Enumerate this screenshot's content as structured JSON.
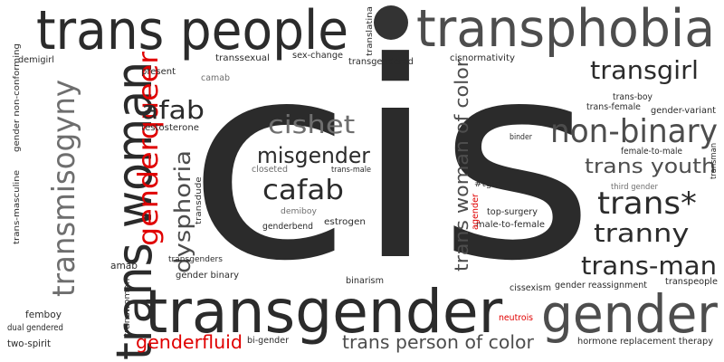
{
  "colors": {
    "dark": "#2b2b2b",
    "mid": "#4d4d4d",
    "gray": "#6e6e6e",
    "light": "#999999",
    "red": "#e00000"
  },
  "words": [
    {
      "text": "cis",
      "color": "dark"
    },
    {
      "text": "trans people",
      "color": "dark"
    },
    {
      "text": "transphobia",
      "color": "mid"
    },
    {
      "text": "transgender",
      "color": "dark"
    },
    {
      "text": "gender",
      "color": "mid"
    },
    {
      "text": "trans woman",
      "color": "dark"
    },
    {
      "text": "transmisogyny",
      "color": "gray"
    },
    {
      "text": "genderqueer",
      "color": "red"
    },
    {
      "text": "non-binary",
      "color": "mid"
    },
    {
      "text": "transgirl",
      "color": "dark"
    },
    {
      "text": "trans woman of color",
      "color": "mid"
    },
    {
      "text": "trans*",
      "color": "dark"
    },
    {
      "text": "tranny",
      "color": "dark"
    },
    {
      "text": "trans-man",
      "color": "dark"
    },
    {
      "text": "trans youth",
      "color": "mid"
    },
    {
      "text": "cishet",
      "color": "gray"
    },
    {
      "text": "misgender",
      "color": "dark"
    },
    {
      "text": "cafab",
      "color": "dark"
    },
    {
      "text": "afab",
      "color": "dark"
    },
    {
      "text": "dysphoria",
      "color": "mid"
    },
    {
      "text": "genderfluid",
      "color": "red"
    },
    {
      "text": "trans person of color",
      "color": "mid"
    },
    {
      "text": "femboy",
      "color": "dark"
    },
    {
      "text": "dual gendered",
      "color": "dark"
    },
    {
      "text": "two-spirit",
      "color": "dark"
    },
    {
      "text": "transwoman",
      "color": "dark"
    },
    {
      "text": "amab",
      "color": "dark"
    },
    {
      "text": "transgenders",
      "color": "dark"
    },
    {
      "text": "gender binary",
      "color": "dark"
    },
    {
      "text": "transdude",
      "color": "dark"
    },
    {
      "text": "testosterone",
      "color": "dark"
    },
    {
      "text": "present",
      "color": "dark"
    },
    {
      "text": "camab",
      "color": "gray"
    },
    {
      "text": "transsexual",
      "color": "dark"
    },
    {
      "text": "sex-change",
      "color": "dark"
    },
    {
      "text": "translatina",
      "color": "dark"
    },
    {
      "text": "transgendered",
      "color": "dark"
    },
    {
      "text": "cisnormativity",
      "color": "dark"
    },
    {
      "text": "demigirl",
      "color": "dark"
    },
    {
      "text": "gender non-conforming",
      "color": "dark"
    },
    {
      "text": "trans-masculine",
      "color": "dark"
    },
    {
      "text": "closeted",
      "color": "gray"
    },
    {
      "text": "trans-male",
      "color": "dark"
    },
    {
      "text": "demiboy",
      "color": "gray"
    },
    {
      "text": "genderbend",
      "color": "dark"
    },
    {
      "text": "estrogen",
      "color": "dark"
    },
    {
      "text": "#tgirl",
      "color": "dark"
    },
    {
      "text": "top-surgery",
      "color": "dark"
    },
    {
      "text": "male-to-female",
      "color": "dark"
    },
    {
      "text": "agender",
      "color": "red"
    },
    {
      "text": "binder",
      "color": "dark"
    },
    {
      "text": "trans-boy",
      "color": "dark"
    },
    {
      "text": "trans-female",
      "color": "dark"
    },
    {
      "text": "gender-variant",
      "color": "dark"
    },
    {
      "text": "female-to-male",
      "color": "dark"
    },
    {
      "text": "transman",
      "color": "dark"
    },
    {
      "text": "third gender",
      "color": "gray"
    },
    {
      "text": "binarism",
      "color": "dark"
    },
    {
      "text": "cissexism",
      "color": "dark"
    },
    {
      "text": "gender reassignment",
      "color": "dark"
    },
    {
      "text": "transpeople",
      "color": "dark"
    },
    {
      "text": "neutrois",
      "color": "red"
    },
    {
      "text": "bi-gender",
      "color": "dark"
    },
    {
      "text": "hormone replacement therapy",
      "color": "dark"
    }
  ]
}
